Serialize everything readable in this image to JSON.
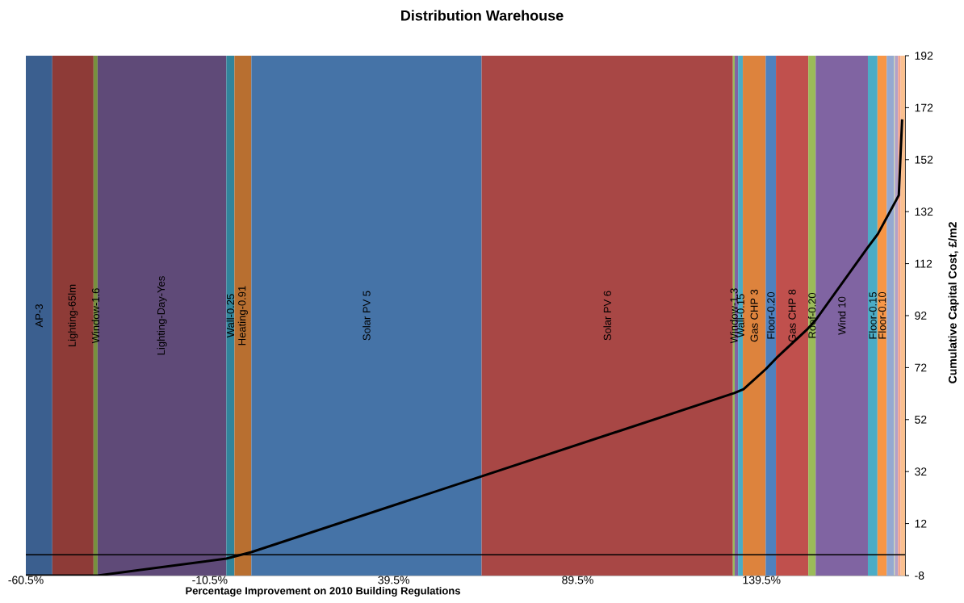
{
  "chart_data": {
    "type": "line",
    "title": "Distribution Warehouse",
    "xlabel": "Percentage Improvement on 2010 Building  Regulations",
    "ylabel": "Cumulative Capital Cost, £/m2",
    "xlim": [
      -60.5,
      178.5
    ],
    "xticks": [
      {
        "value": -60.5,
        "label": "-60.5%"
      },
      {
        "value": -10.5,
        "label": "-10.5%"
      },
      {
        "value": 39.5,
        "label": "39.5%"
      },
      {
        "value": 89.5,
        "label": "89.5%"
      },
      {
        "value": 139.5,
        "label": "139.5%"
      }
    ],
    "ylim": [
      -8,
      192
    ],
    "yticks": [
      -8,
      12,
      32,
      52,
      72,
      92,
      112,
      132,
      152,
      172,
      192
    ],
    "grid": false,
    "marker": "none",
    "line_style": "solid",
    "series": [
      {
        "color": "#000000",
        "x": [
          -60.5,
          -41.0,
          -6.0,
          0.8,
          132.1,
          134.6,
          140.7,
          143.6,
          152.1,
          154.1,
          168.3,
          171.1,
          175.5,
          176.8,
          177.7
        ],
        "values": [
          -8,
          -8,
          -1.5,
          1.0,
          62.2,
          63.7,
          71.5,
          75.8,
          87.0,
          90.1,
          118.1,
          123.4,
          134.9,
          138.3,
          167.5
        ]
      }
    ],
    "ref_lines": [
      {
        "axis": "y",
        "value": 0,
        "color": "#000000"
      }
    ],
    "bands": [
      {
        "axis": "x",
        "from": -60.5,
        "to": -53.3,
        "label": "AP-3",
        "color": "#3b5f8f"
      },
      {
        "axis": "x",
        "from": -53.3,
        "to": -42.1,
        "label": "Lighting-65lm",
        "color": "#8e3b37"
      },
      {
        "axis": "x",
        "from": -42.1,
        "to": -41.0,
        "label": "Window-1.6",
        "color": "#77913e"
      },
      {
        "axis": "x",
        "from": -41.0,
        "to": -6.0,
        "label": "Lighting-Day-Yes",
        "color": "#5f4a78"
      },
      {
        "axis": "x",
        "from": -6.0,
        "to": -3.8,
        "label": "Wall-0.25",
        "color": "#31849b"
      },
      {
        "axis": "x",
        "from": -3.8,
        "to": 0.8,
        "label": "Heating-0.91",
        "color": "#b86f30"
      },
      {
        "axis": "x",
        "from": 0.8,
        "to": 63.4,
        "label": "Solar PV 5",
        "color": "#4573a7"
      },
      {
        "axis": "x",
        "from": 63.4,
        "to": 131.7,
        "label": "Solar PV 6",
        "color": "#a84745"
      },
      {
        "axis": "x",
        "from": 131.7,
        "to": 132.2,
        "label": "Window-1.3",
        "color": "#9bbb59"
      },
      {
        "axis": "x",
        "from": 132.2,
        "to": 133.1,
        "color": "#8064a2"
      },
      {
        "axis": "x",
        "from": 133.1,
        "to": 134.4,
        "label": "Wall-0.15",
        "color": "#4bacc6"
      },
      {
        "axis": "x",
        "from": 134.4,
        "to": 140.6,
        "label": "Gas CHP 3",
        "color": "#dd833d"
      },
      {
        "axis": "x",
        "from": 140.6,
        "to": 143.4,
        "label": "Floor-0.20",
        "color": "#4f81bd"
      },
      {
        "axis": "x",
        "from": 143.4,
        "to": 152.2,
        "label": "Gas CHP 8",
        "color": "#c0504d"
      },
      {
        "axis": "x",
        "from": 152.2,
        "to": 154.2,
        "label": "Roof-0.20",
        "color": "#9bbb59"
      },
      {
        "axis": "x",
        "from": 154.2,
        "to": 168.4,
        "label": "Wind 10",
        "color": "#8064a2"
      },
      {
        "axis": "x",
        "from": 168.4,
        "to": 171.0,
        "label": "Floor-0.15",
        "color": "#4bacc6"
      },
      {
        "axis": "x",
        "from": 171.0,
        "to": 173.5,
        "label": "Floor-0.10",
        "color": "#f79646"
      },
      {
        "axis": "x",
        "from": 173.5,
        "to": 175.5,
        "color": "#95a9d0"
      },
      {
        "axis": "x",
        "from": 175.5,
        "to": 175.7,
        "color": "#c3d69b"
      },
      {
        "axis": "x",
        "from": 175.7,
        "to": 176.6,
        "color": "#b3a2c7"
      },
      {
        "axis": "x",
        "from": 176.6,
        "to": 177.3,
        "color": "#f2a28a"
      },
      {
        "axis": "x",
        "from": 177.3,
        "to": 178.5,
        "color": "#fac090"
      }
    ]
  }
}
